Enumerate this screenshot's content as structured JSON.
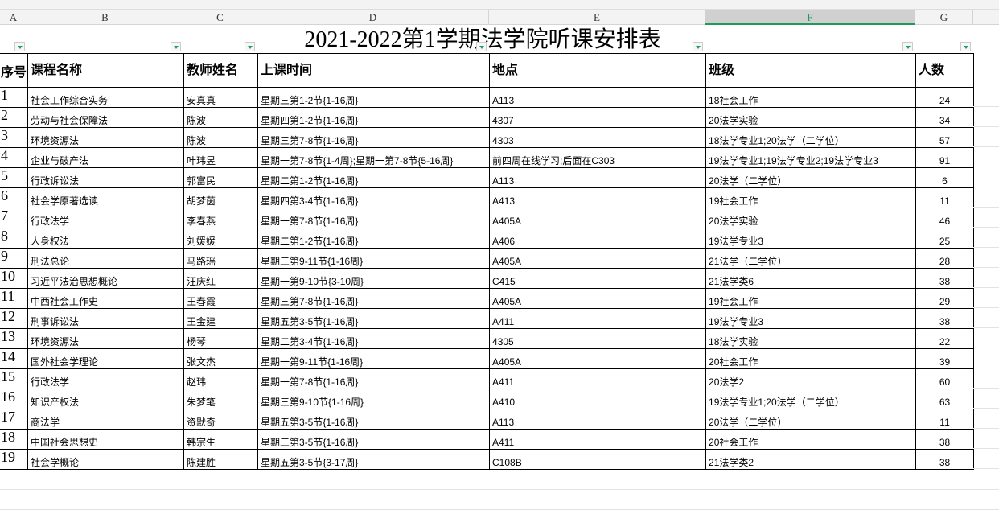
{
  "columns": [
    "A",
    "B",
    "C",
    "D",
    "E",
    "F",
    "G"
  ],
  "selected_column": "F",
  "title": "2021-2022第1学期法学院听课安排表",
  "headers": [
    "序号",
    "课程名称",
    "教师姓名",
    "上课时间",
    "地点",
    "班级",
    "人数"
  ],
  "rows": [
    [
      "1",
      "社会工作综合实务",
      "安真真",
      "星期三第1-2节{1-16周}",
      "A113",
      "18社会工作",
      "24"
    ],
    [
      "2",
      "劳动与社会保障法",
      "陈波",
      "星期四第1-2节{1-16周}",
      "4307",
      "20法学实验",
      "34"
    ],
    [
      "3",
      "环境资源法",
      "陈波",
      "星期三第7-8节{1-16周}",
      "4303",
      "18法学专业1;20法学（二学位）",
      "57"
    ],
    [
      "4",
      "企业与破产法",
      "叶玮昱",
      "星期一第7-8节{1-4周};星期一第7-8节{5-16周}",
      "前四周在线学习;后面在C303",
      "19法学专业1;19法学专业2;19法学专业3",
      "91"
    ],
    [
      "5",
      "行政诉讼法",
      "郭富民",
      "星期二第1-2节{1-16周}",
      "A113",
      "20法学（二学位）",
      "6"
    ],
    [
      "6",
      "社会学原著选读",
      "胡梦茵",
      "星期四第3-4节{1-16周}",
      "A413",
      "19社会工作",
      "11"
    ],
    [
      "7",
      "行政法学",
      "李春燕",
      "星期一第7-8节{1-16周}",
      "A405A",
      "20法学实验",
      "46"
    ],
    [
      "8",
      "人身权法",
      "刘媛媛",
      "星期二第1-2节{1-16周}",
      "A406",
      "19法学专业3",
      "25"
    ],
    [
      "9",
      "刑法总论",
      "马路瑶",
      "星期三第9-11节{1-16周}",
      "A405A",
      "21法学（二学位）",
      "28"
    ],
    [
      "10",
      "习近平法治思想概论",
      "汪庆红",
      "星期一第9-10节{3-10周}",
      "C415",
      "21法学类6",
      "38"
    ],
    [
      "11",
      "中西社会工作史",
      "王春霞",
      "星期三第7-8节{1-16周}",
      "A405A",
      "19社会工作",
      "29"
    ],
    [
      "12",
      "刑事诉讼法",
      "王金建",
      "星期五第3-5节{1-16周}",
      "A411",
      "19法学专业3",
      "38"
    ],
    [
      "13",
      "环境资源法",
      "杨琴",
      "星期二第3-4节{1-16周}",
      "4305",
      "18法学实验",
      "22"
    ],
    [
      "14",
      "国外社会学理论",
      "张文杰",
      "星期一第9-11节{1-16周}",
      "A405A",
      "20社会工作",
      "39"
    ],
    [
      "15",
      "行政法学",
      "赵玮",
      "星期一第7-8节{1-16周}",
      "A411",
      "20法学2",
      "60"
    ],
    [
      "16",
      "知识产权法",
      "朱梦笔",
      "星期三第9-10节{1-16周}",
      "A410",
      "19法学专业1;20法学（二学位）",
      "63"
    ],
    [
      "17",
      "商法学",
      "资默奇",
      "星期五第3-5节{1-16周}",
      "A113",
      "20法学（二学位）",
      "11"
    ],
    [
      "18",
      "中国社会思想史",
      "韩宗生",
      "星期三第3-5节{1-16周}",
      "A411",
      "20社会工作",
      "38"
    ],
    [
      "19",
      "社会学概论",
      "陈建胜",
      "星期五第3-5节{3-17周}",
      "C108B",
      "21法学类2",
      "38"
    ]
  ],
  "colors": {
    "selected_column": "#1f9a5a",
    "filter_arrow": "#1fa060"
  },
  "icons": {
    "filter": "filter-dropdown-icon"
  }
}
